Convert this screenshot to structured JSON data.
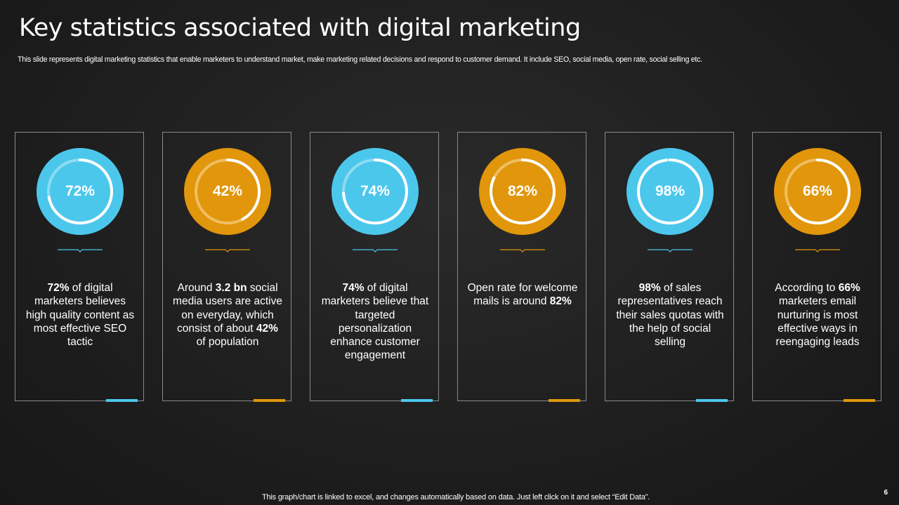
{
  "slide": {
    "title": "Key statistics associated with digital marketing",
    "subtitle": "This slide represents digital marketing statistics that enable marketers to understand market, make marketing related decisions and respond to customer demand. It include SEO,  social media, open rate, social selling etc.",
    "footer_note": "This graph/chart is linked to excel,  and changes automatically based on data. Just left click on it and select “Edit Data”.",
    "page_number": "6"
  },
  "colors": {
    "blue": "#4CC7EC",
    "orange": "#E1960B",
    "blue_track": "#8EDBF2",
    "orange_track": "#F0BE63"
  },
  "stats": [
    {
      "percent_label": "72%",
      "value": 72,
      "color": "blue",
      "description": [
        {
          "text": "72%",
          "bold": true
        },
        {
          "text": " of digital marketers believes high quality content as most effective SEO tactic",
          "bold": false
        }
      ]
    },
    {
      "percent_label": "42%",
      "value": 42,
      "color": "orange",
      "description": [
        {
          "text": "Around ",
          "bold": false
        },
        {
          "text": "3.2 bn",
          "bold": true
        },
        {
          "text": " social media users are active on everyday, which consist of about ",
          "bold": false
        },
        {
          "text": "42%",
          "bold": true
        },
        {
          "text": " of population",
          "bold": false
        }
      ]
    },
    {
      "percent_label": "74%",
      "value": 74,
      "color": "blue",
      "description": [
        {
          "text": "74%",
          "bold": true
        },
        {
          "text": " of digital marketers believe that targeted personalization enhance customer engagement",
          "bold": false
        }
      ]
    },
    {
      "percent_label": "82%",
      "value": 82,
      "color": "orange",
      "description": [
        {
          "text": "Open rate for welcome mails is around ",
          "bold": false
        },
        {
          "text": "82%",
          "bold": true
        }
      ]
    },
    {
      "percent_label": "98%",
      "value": 98,
      "color": "blue",
      "description": [
        {
          "text": "98%",
          "bold": true
        },
        {
          "text": " of sales representatives reach their sales quotas with the help of social selling",
          "bold": false
        }
      ]
    },
    {
      "percent_label": "66%",
      "value": 66,
      "color": "orange",
      "description": [
        {
          "text": "According to ",
          "bold": false
        },
        {
          "text": "66%",
          "bold": true
        },
        {
          "text": " marketers email nurturing  is most effective ways in reengaging leads",
          "bold": false
        }
      ]
    }
  ]
}
